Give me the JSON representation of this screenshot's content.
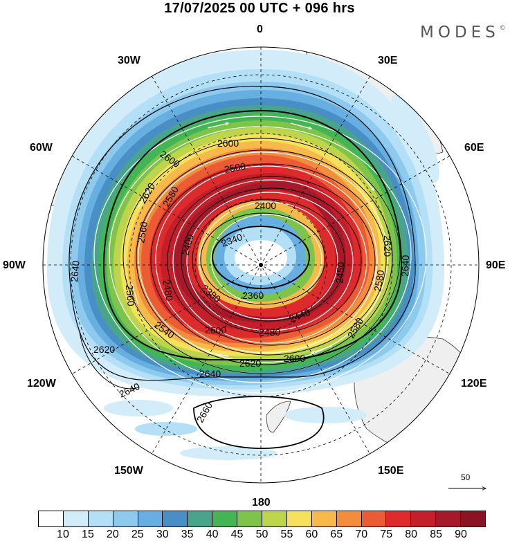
{
  "title": "17/07/2025  00 UTC  + 096 hrs",
  "brand": "MODES",
  "brand_mark": "©",
  "longitude_labels": {
    "lon_0": "0",
    "lon_30e": "30E",
    "lon_60e": "60E",
    "lon_90e": "90E",
    "lon_120e": "120E",
    "lon_150e": "150E",
    "lon_180": "180",
    "lon_150w": "150W",
    "lon_120w": "120W",
    "lon_90w": "90W",
    "lon_60w": "60W",
    "lon_30w": "30W"
  },
  "reference_vector": {
    "label": "50"
  },
  "contour_labels": {
    "c2340": "2340",
    "c2360": "2360",
    "c2380": "2380",
    "c2400a": "2400",
    "c2400b": "2400",
    "c2400c": "2400",
    "c2440": "2440",
    "c2450": "2450",
    "c2480a": "2480",
    "c2480b": "2480",
    "c2500": "2500",
    "c2540": "2540",
    "c2560a": "2560",
    "c2560b": "2560",
    "c2580a": "2580",
    "c2580b": "2580",
    "c2580c": "2580",
    "c2600a": "2600",
    "c2600b": "2600",
    "c2600c": "2600",
    "c2600d": "2600",
    "c2620a": "2620",
    "c2620b": "2620",
    "c2620c": "2620",
    "c2620d": "2620",
    "c2640a": "2640",
    "c2640b": "2640",
    "c2640c": "2640",
    "c2640d": "2640",
    "c2660": "2660"
  },
  "colorbar": {
    "colors": [
      "#ffffff",
      "#d3ecfa",
      "#b3dff7",
      "#8ec9ee",
      "#66afe0",
      "#4a8ec6",
      "#48a58c",
      "#44b554",
      "#7ec34a",
      "#bed44b",
      "#f5e15a",
      "#f6b94a",
      "#f38c3b",
      "#ec5c34",
      "#dd2b2d",
      "#c31f2a",
      "#a6192a",
      "#8a1422"
    ],
    "ticks": [
      "10",
      "15",
      "20",
      "25",
      "30",
      "35",
      "40",
      "45",
      "50",
      "55",
      "60",
      "65",
      "70",
      "75",
      "80",
      "85",
      "90"
    ]
  }
}
